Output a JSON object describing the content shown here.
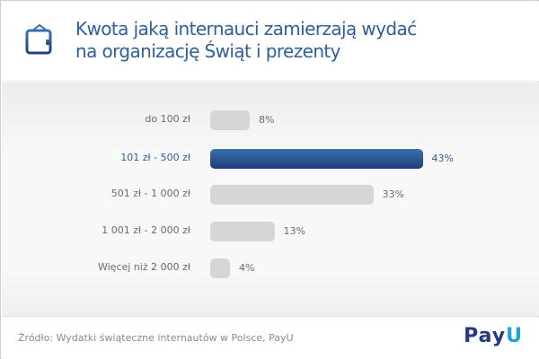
{
  "header": {
    "title_line1": "Kwota jaką internauci zamierzają wydać",
    "title_line2": "na organizację Świąt i prezenty",
    "icon": "wallet-icon"
  },
  "chart_data": {
    "type": "bar",
    "orientation": "horizontal",
    "title": "Kwota jaką internauci zamierzają wydać na organizację Świąt i prezenty",
    "categories": [
      "do 100 zł",
      "101 zł - 500 zł",
      "501 zł - 1 000 zł",
      "1 001 zł - 2 000 zł",
      "Więcej niż 2 000 zł"
    ],
    "values": [
      8,
      43,
      33,
      13,
      4
    ],
    "labels": [
      "8%",
      "43%",
      "33%",
      "13%",
      "4%"
    ],
    "highlight_index": 1,
    "unit": "%",
    "xlim": [
      0,
      45
    ],
    "colors": {
      "default": "#d6d6d6",
      "highlight": "#2a5595"
    }
  },
  "footer": {
    "source": "Źródło: Wydatki świąteczne internautów w Polsce, PayU",
    "logo_main": "Pay",
    "logo_accent": "U"
  }
}
